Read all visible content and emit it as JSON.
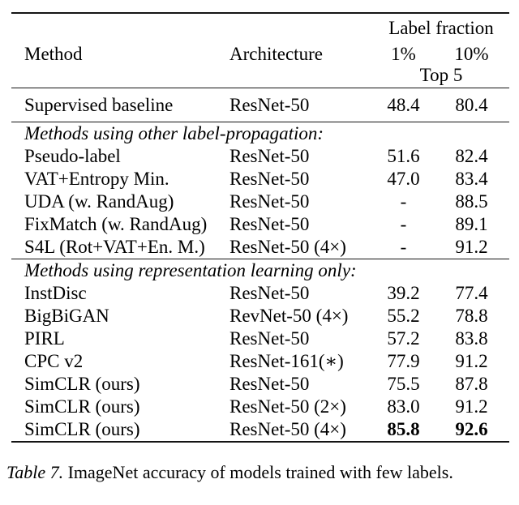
{
  "table": {
    "header": {
      "method": "Method",
      "architecture": "Architecture",
      "label_fraction": "Label fraction",
      "pct_1": "1%",
      "pct_10": "10%",
      "top5": "Top 5"
    },
    "sections": [
      {
        "title": null,
        "rows": [
          {
            "method": "Supervised baseline",
            "architecture": "ResNet-50",
            "top5_1pct": "48.4",
            "top5_10pct": "80.4",
            "bold_values": false
          }
        ]
      },
      {
        "title": "Methods using other label-propagation:",
        "rows": [
          {
            "method": "Pseudo-label",
            "architecture": "ResNet-50",
            "top5_1pct": "51.6",
            "top5_10pct": "82.4",
            "bold_values": false
          },
          {
            "method": "VAT+Entropy Min.",
            "architecture": "ResNet-50",
            "top5_1pct": "47.0",
            "top5_10pct": "83.4",
            "bold_values": false
          },
          {
            "method": "UDA (w. RandAug)",
            "architecture": "ResNet-50",
            "top5_1pct": "-",
            "top5_10pct": "88.5",
            "bold_values": false
          },
          {
            "method": "FixMatch (w. RandAug)",
            "architecture": "ResNet-50",
            "top5_1pct": "-",
            "top5_10pct": "89.1",
            "bold_values": false
          },
          {
            "method": "S4L (Rot+VAT+En. M.)",
            "architecture": "ResNet-50 (4×)",
            "top5_1pct": "-",
            "top5_10pct": "91.2",
            "bold_values": false
          }
        ]
      },
      {
        "title": "Methods using representation learning only:",
        "rows": [
          {
            "method": "InstDisc",
            "architecture": "ResNet-50",
            "top5_1pct": "39.2",
            "top5_10pct": "77.4",
            "bold_values": false
          },
          {
            "method": "BigBiGAN",
            "architecture": "RevNet-50 (4×)",
            "top5_1pct": "55.2",
            "top5_10pct": "78.8",
            "bold_values": false
          },
          {
            "method": "PIRL",
            "architecture": "ResNet-50",
            "top5_1pct": "57.2",
            "top5_10pct": "83.8",
            "bold_values": false
          },
          {
            "method": "CPC v2",
            "architecture": "ResNet-161(∗)",
            "top5_1pct": "77.9",
            "top5_10pct": "91.2",
            "bold_values": false
          },
          {
            "method": "SimCLR (ours)",
            "architecture": "ResNet-50",
            "top5_1pct": "75.5",
            "top5_10pct": "87.8",
            "bold_values": false
          },
          {
            "method": "SimCLR (ours)",
            "architecture": "ResNet-50 (2×)",
            "top5_1pct": "83.0",
            "top5_10pct": "91.2",
            "bold_values": false
          },
          {
            "method": "SimCLR (ours)",
            "architecture": "ResNet-50 (4×)",
            "top5_1pct": "85.8",
            "top5_10pct": "92.6",
            "bold_values": true
          }
        ]
      }
    ]
  },
  "caption": {
    "label": "Table 7.",
    "text": " ImageNet accuracy of models trained with few labels."
  }
}
